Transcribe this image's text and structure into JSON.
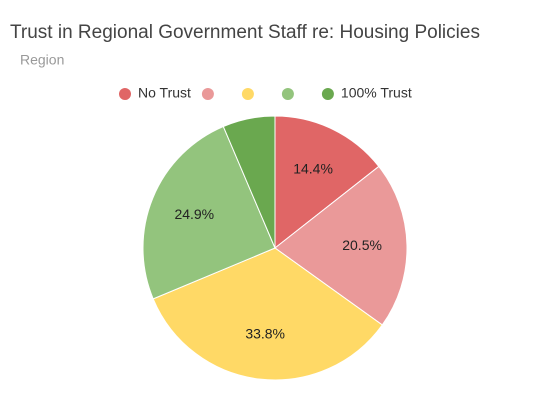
{
  "chart_data": {
    "type": "pie",
    "title": "Trust in Regional Government Staff re: Housing Policies",
    "subtitle": "Region",
    "categories": [
      "No Trust",
      null,
      null,
      null,
      "100% Trust"
    ],
    "values": [
      14.4,
      20.5,
      33.8,
      24.9,
      6.4
    ],
    "value_labels": [
      "14.4%",
      "20.5%",
      "33.8%",
      "24.9%",
      null
    ],
    "colors": [
      "#e06666",
      "#ea9999",
      "#ffd966",
      "#93c47d",
      "#6aa84f"
    ],
    "legend": "top"
  }
}
